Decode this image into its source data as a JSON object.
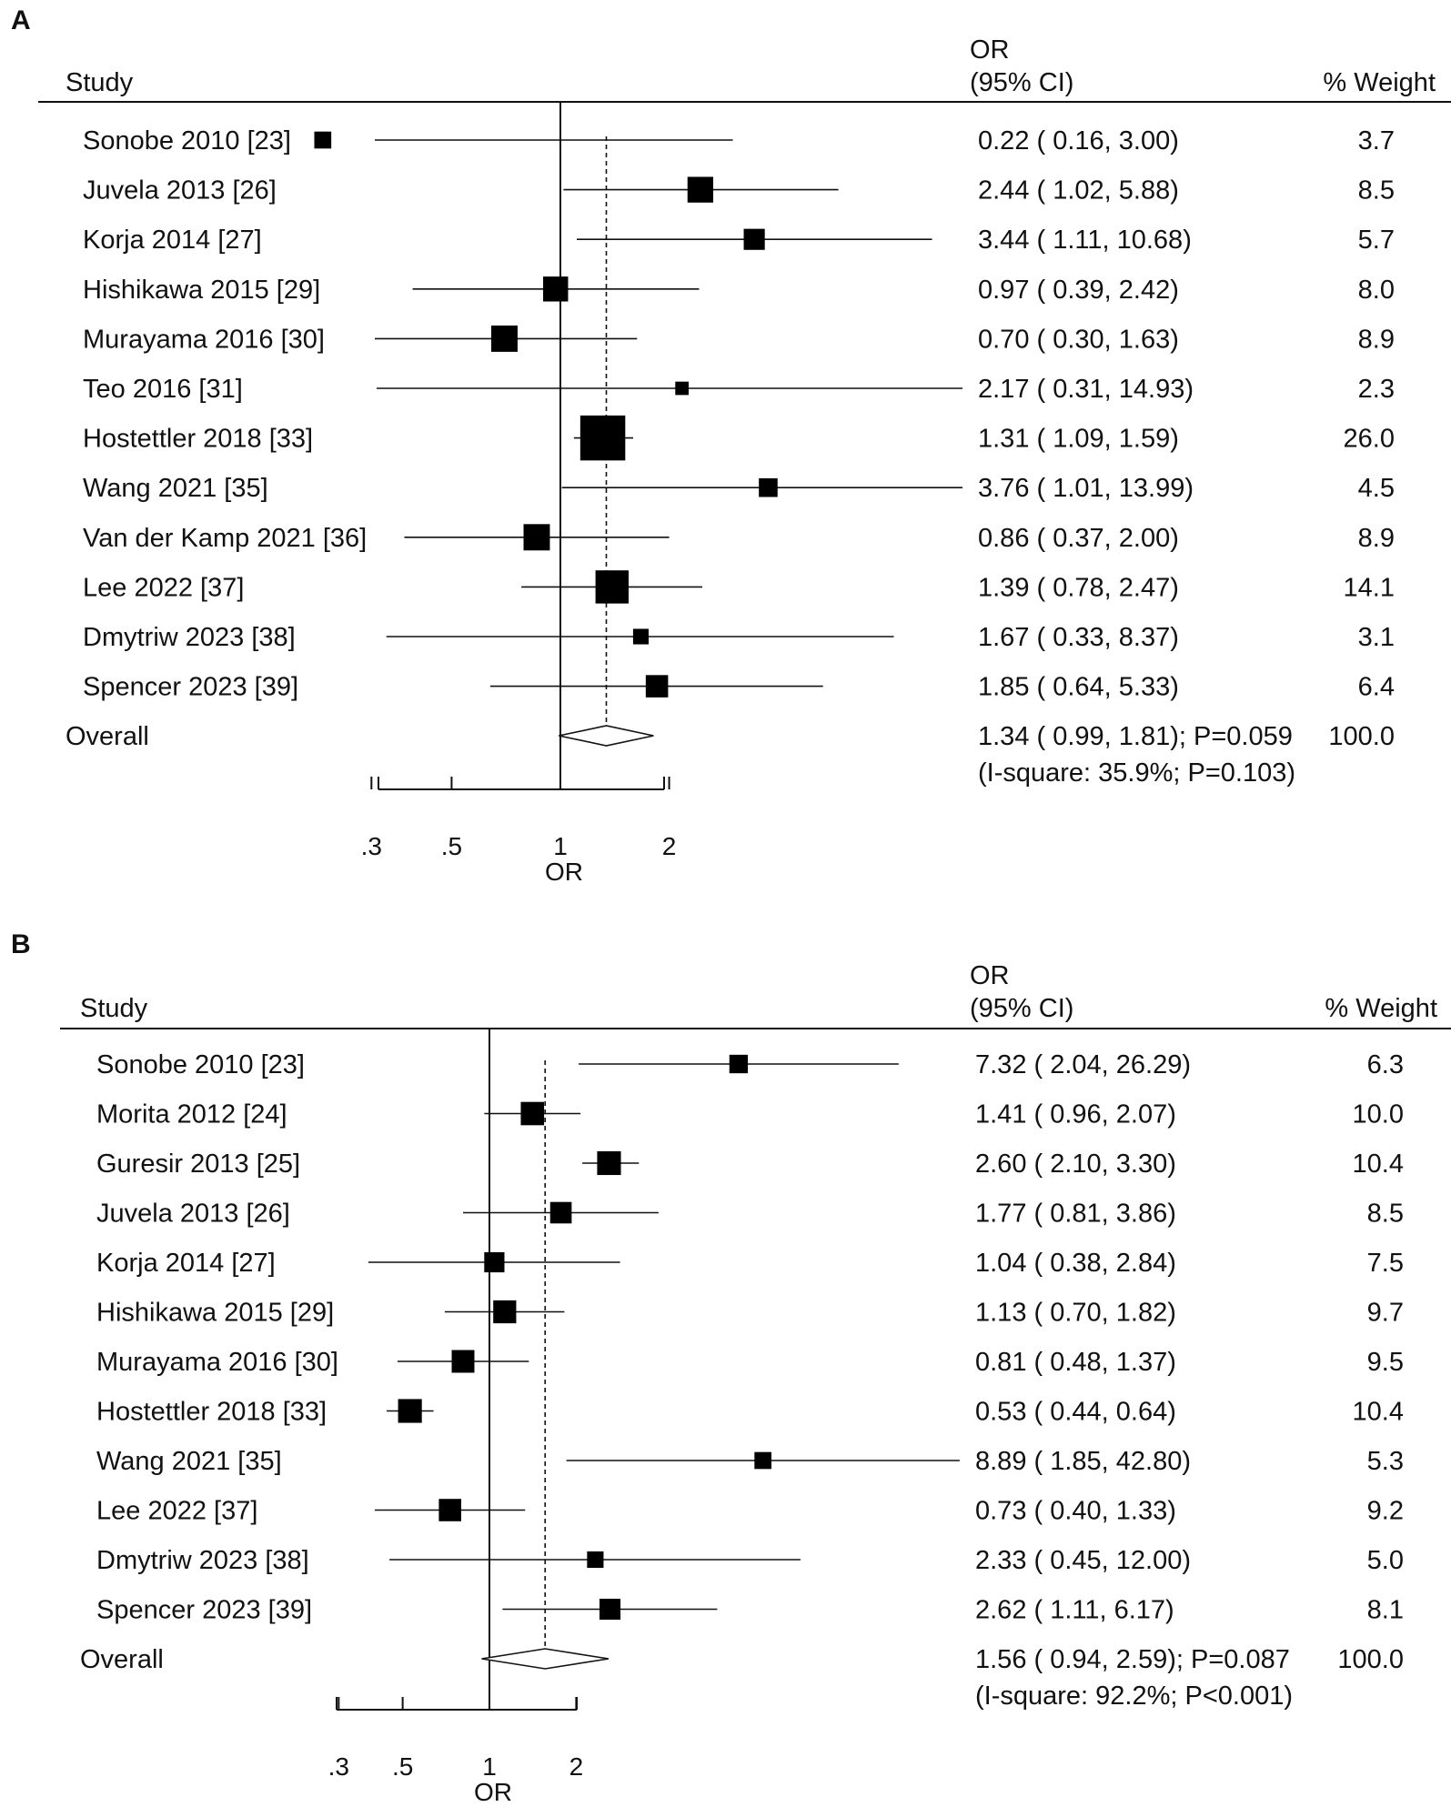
{
  "chart_data": [
    {
      "type": "forest",
      "panel_label": "A",
      "headers": {
        "study": "Study",
        "or_line1": "OR",
        "or_line2": "(95% CI)",
        "weight": "% Weight"
      },
      "xscale": "log",
      "xlim": [
        0.3,
        2
      ],
      "xticks": [
        0.3,
        0.5,
        1,
        2
      ],
      "xtick_labels": [
        ".3",
        ".5",
        "1",
        "2"
      ],
      "xlabel": "OR",
      "reference_line": 1,
      "overall_line": 1.34,
      "studies": [
        {
          "label": "Sonobe 2010 [23]",
          "or": 0.22,
          "lo": 0.16,
          "hi": 3.0,
          "or_text": "0.22 ( 0.16, 3.00)",
          "weight": 3.7,
          "weight_text": "3.7"
        },
        {
          "label": "Juvela 2013 [26]",
          "or": 2.44,
          "lo": 1.02,
          "hi": 5.88,
          "or_text": "2.44 ( 1.02, 5.88)",
          "weight": 8.5,
          "weight_text": "8.5"
        },
        {
          "label": "Korja 2014 [27]",
          "or": 3.44,
          "lo": 1.11,
          "hi": 10.68,
          "or_text": "3.44 ( 1.11, 10.68)",
          "weight": 5.7,
          "weight_text": "5.7"
        },
        {
          "label": "Hishikawa 2015 [29]",
          "or": 0.97,
          "lo": 0.39,
          "hi": 2.42,
          "or_text": "0.97 ( 0.39, 2.42)",
          "weight": 8.0,
          "weight_text": "8.0"
        },
        {
          "label": "Murayama 2016 [30]",
          "or": 0.7,
          "lo": 0.3,
          "hi": 1.63,
          "or_text": "0.70 ( 0.30, 1.63)",
          "weight": 8.9,
          "weight_text": "8.9"
        },
        {
          "label": "Teo 2016 [31]",
          "or": 2.17,
          "lo": 0.31,
          "hi": 14.93,
          "or_text": "2.17 ( 0.31, 14.93)",
          "weight": 2.3,
          "weight_text": "2.3"
        },
        {
          "label": "Hostettler 2018 [33]",
          "or": 1.31,
          "lo": 1.09,
          "hi": 1.59,
          "or_text": "1.31 ( 1.09, 1.59)",
          "weight": 26.0,
          "weight_text": "26.0"
        },
        {
          "label": "Wang 2021 [35]",
          "or": 3.76,
          "lo": 1.01,
          "hi": 13.99,
          "or_text": "3.76 ( 1.01, 13.99)",
          "weight": 4.5,
          "weight_text": "4.5"
        },
        {
          "label": "Van der Kamp 2021 [36]",
          "or": 0.86,
          "lo": 0.37,
          "hi": 2.0,
          "or_text": "0.86 ( 0.37, 2.00)",
          "weight": 8.9,
          "weight_text": "8.9"
        },
        {
          "label": "Lee 2022 [37]",
          "or": 1.39,
          "lo": 0.78,
          "hi": 2.47,
          "or_text": "1.39 ( 0.78, 2.47)",
          "weight": 14.1,
          "weight_text": "14.1"
        },
        {
          "label": "Dmytriw 2023 [38]",
          "or": 1.67,
          "lo": 0.33,
          "hi": 8.37,
          "or_text": "1.67 ( 0.33, 8.37)",
          "weight": 3.1,
          "weight_text": "3.1"
        },
        {
          "label": "Spencer 2023 [39]",
          "or": 1.85,
          "lo": 0.64,
          "hi": 5.33,
          "or_text": "1.85 ( 0.64, 5.33)",
          "weight": 6.4,
          "weight_text": "6.4"
        }
      ],
      "overall": {
        "label": "Overall",
        "or": 1.34,
        "lo": 0.99,
        "hi": 1.81,
        "or_text": "1.34 ( 0.99, 1.81); P=0.059",
        "weight_text": "100.0",
        "heterogeneity": "(I-square: 35.9%; P=0.103)"
      }
    },
    {
      "type": "forest",
      "panel_label": "B",
      "headers": {
        "study": "Study",
        "or_line1": "OR",
        "or_line2": "(95% CI)",
        "weight": "% Weight"
      },
      "xscale": "log",
      "xlim": [
        0.3,
        2
      ],
      "xticks": [
        0.3,
        0.5,
        1,
        2
      ],
      "xtick_labels": [
        ".3",
        ".5",
        "1",
        "2"
      ],
      "xlabel": "OR",
      "reference_line": 1,
      "overall_line": 1.56,
      "studies": [
        {
          "label": "Sonobe 2010 [23]",
          "or": 7.32,
          "lo": 2.04,
          "hi": 26.29,
          "or_text": "7.32 ( 2.04, 26.29)",
          "weight": 6.3,
          "weight_text": "6.3"
        },
        {
          "label": "Morita 2012 [24]",
          "or": 1.41,
          "lo": 0.96,
          "hi": 2.07,
          "or_text": "1.41 ( 0.96, 2.07)",
          "weight": 10.0,
          "weight_text": "10.0"
        },
        {
          "label": "Guresir 2013 [25]",
          "or": 2.6,
          "lo": 2.1,
          "hi": 3.3,
          "or_text": "2.60 ( 2.10, 3.30)",
          "weight": 10.4,
          "weight_text": "10.4"
        },
        {
          "label": "Juvela 2013 [26]",
          "or": 1.77,
          "lo": 0.81,
          "hi": 3.86,
          "or_text": "1.77 ( 0.81, 3.86)",
          "weight": 8.5,
          "weight_text": "8.5"
        },
        {
          "label": "Korja 2014 [27]",
          "or": 1.04,
          "lo": 0.38,
          "hi": 2.84,
          "or_text": "1.04 ( 0.38, 2.84)",
          "weight": 7.5,
          "weight_text": "7.5"
        },
        {
          "label": "Hishikawa 2015 [29]",
          "or": 1.13,
          "lo": 0.7,
          "hi": 1.82,
          "or_text": "1.13 ( 0.70, 1.82)",
          "weight": 9.7,
          "weight_text": "9.7"
        },
        {
          "label": "Murayama 2016 [30]",
          "or": 0.81,
          "lo": 0.48,
          "hi": 1.37,
          "or_text": "0.81 ( 0.48, 1.37)",
          "weight": 9.5,
          "weight_text": "9.5"
        },
        {
          "label": "Hostettler 2018 [33]",
          "or": 0.53,
          "lo": 0.44,
          "hi": 0.64,
          "or_text": "0.53 ( 0.44, 0.64)",
          "weight": 10.4,
          "weight_text": "10.4"
        },
        {
          "label": "Wang 2021 [35]",
          "or": 8.89,
          "lo": 1.85,
          "hi": 42.8,
          "or_text": "8.89 ( 1.85, 42.80)",
          "weight": 5.3,
          "weight_text": "5.3"
        },
        {
          "label": "Lee 2022 [37]",
          "or": 0.73,
          "lo": 0.4,
          "hi": 1.33,
          "or_text": "0.73 ( 0.40, 1.33)",
          "weight": 9.2,
          "weight_text": "9.2"
        },
        {
          "label": "Dmytriw 2023 [38]",
          "or": 2.33,
          "lo": 0.45,
          "hi": 12.0,
          "or_text": "2.33 ( 0.45, 12.00)",
          "weight": 5.0,
          "weight_text": "5.0"
        },
        {
          "label": "Spencer 2023 [39]",
          "or": 2.62,
          "lo": 1.11,
          "hi": 6.17,
          "or_text": "2.62 ( 1.11, 6.17)",
          "weight": 8.1,
          "weight_text": "8.1"
        }
      ],
      "overall": {
        "label": "Overall",
        "or": 1.56,
        "lo": 0.94,
        "hi": 2.59,
        "or_text": "1.56 ( 0.94, 2.59); P=0.087",
        "weight_text": "100.0",
        "heterogeneity": "(I-square: 92.2%; P<0.001)"
      }
    }
  ]
}
